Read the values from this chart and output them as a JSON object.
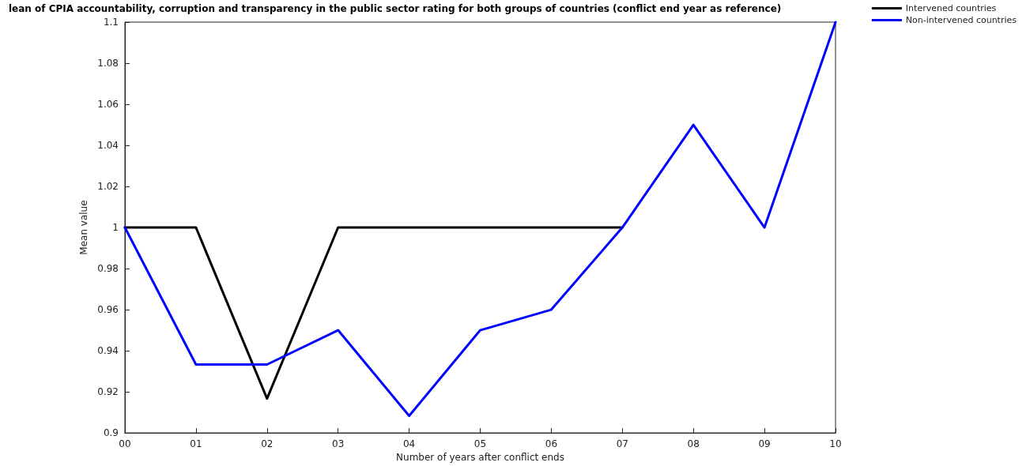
{
  "chart_data": {
    "type": "line",
    "title": "lean of CPIA accountability, corruption and transparency in the public sector rating for both groups of countries (conflict end year as reference)",
    "xlabel": "Number of years after conflict ends",
    "ylabel": "Mean value",
    "categories": [
      "00",
      "01",
      "02",
      "03",
      "04",
      "05",
      "06",
      "07",
      "08",
      "09",
      "10"
    ],
    "series": [
      {
        "name": "Intervened countries",
        "color": "#000000",
        "values": [
          1,
          1,
          0.9167,
          1,
          1,
          1,
          1,
          1,
          null,
          null,
          null
        ]
      },
      {
        "name": "Non-intervened countries",
        "color": "#0000ff",
        "values": [
          1,
          0.9333,
          0.9333,
          0.95,
          0.9083,
          0.95,
          0.96,
          1,
          1.05,
          1,
          1.1
        ]
      }
    ],
    "ylim": [
      0.9,
      1.1
    ],
    "yticks": [
      0.9,
      0.92,
      0.94,
      0.96,
      0.98,
      1,
      1.02,
      1.04,
      1.06,
      1.08,
      1.1
    ],
    "grid": false,
    "legend": "top right",
    "marker": "none",
    "line_style": "solid"
  }
}
